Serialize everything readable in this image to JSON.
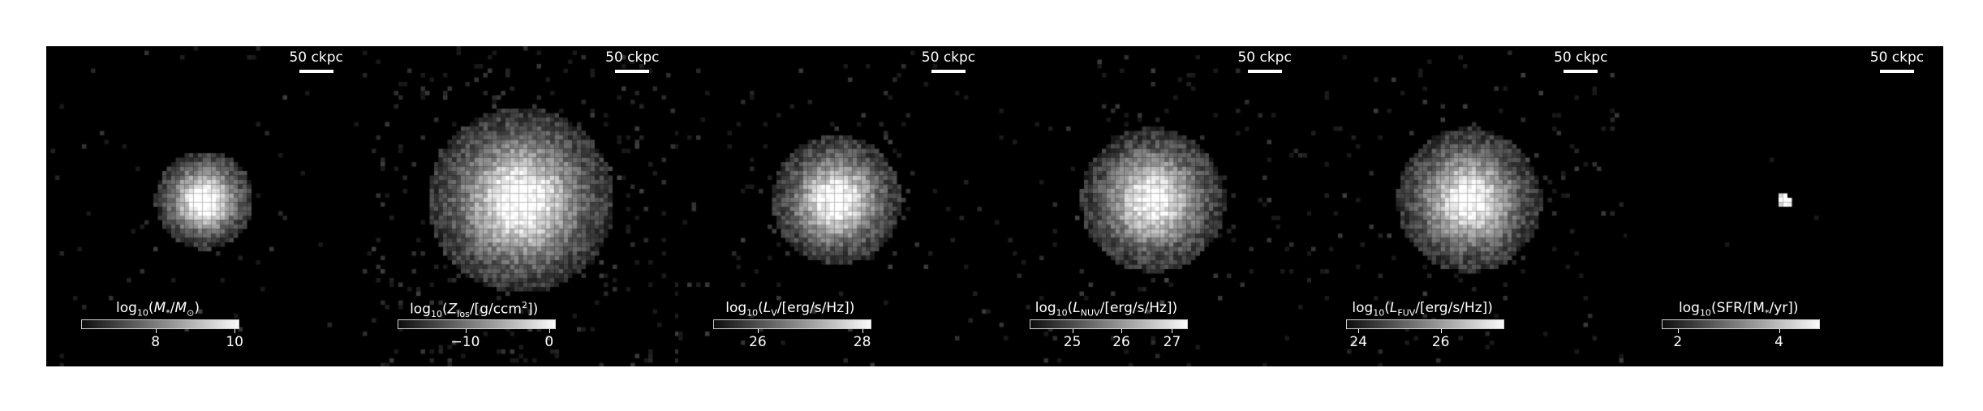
{
  "scale_label": "50 ckpc",
  "panels": [
    {
      "id": "mstar",
      "label_html": "log<sub>10</sub>(<i>M</i><sub>*</sub>/<i>M</i><sub>⊙</sub>)",
      "ticks": [
        {
          "t": "8",
          "p": 0.47
        },
        {
          "t": "10",
          "p": 0.97
        }
      ],
      "cmap": [
        0.05,
        0.98
      ],
      "spread": 0.75,
      "sparse": 0.25,
      "peak": 1.0
    },
    {
      "id": "zlos",
      "label_html": "log<sub>10</sub>(<i>Z</i><sub>los</sub>/[g/ccm<sup>2</sup>])",
      "ticks": [
        {
          "t": "−10",
          "p": 0.43
        },
        {
          "t": "0",
          "p": 0.96
        }
      ],
      "cmap": [
        0.05,
        0.98
      ],
      "spread": 1.6,
      "sparse": 1.0,
      "peak": 0.95
    },
    {
      "id": "lv",
      "label_html": "log<sub>10</sub>(<i>L</i><sub>V</sub>/[erg/s/Hz])",
      "ticks": [
        {
          "t": "26",
          "p": 0.28
        },
        {
          "t": "28",
          "p": 0.94
        }
      ],
      "cmap": [
        0.05,
        0.98
      ],
      "spread": 1.05,
      "sparse": 0.45,
      "peak": 0.95
    },
    {
      "id": "lnuv",
      "label_html": "log<sub>10</sub>(<i>L</i><sub>NUV</sub>/[erg/s/Hz])",
      "ticks": [
        {
          "t": "25",
          "p": 0.27
        },
        {
          "t": "26",
          "p": 0.58
        },
        {
          "t": "27",
          "p": 0.9
        }
      ],
      "cmap": [
        0.05,
        0.98
      ],
      "spread": 1.2,
      "sparse": 0.6,
      "peak": 0.9
    },
    {
      "id": "lfuv",
      "label_html": "log<sub>10</sub>(<i>L</i><sub>FUV</sub>/[erg/s/Hz])",
      "ticks": [
        {
          "t": "24",
          "p": 0.08
        },
        {
          "t": "26",
          "p": 0.6
        }
      ],
      "cmap": [
        0.05,
        0.98
      ],
      "spread": 1.2,
      "sparse": 0.6,
      "peak": 0.9
    },
    {
      "id": "sfr",
      "label_html": "log<sub>10</sub>(SFR/[M<sub>*</sub>/yr])",
      "ticks": [
        {
          "t": "2",
          "p": 0.1
        },
        {
          "t": "4",
          "p": 0.74
        }
      ],
      "cmap": [
        0.05,
        0.98
      ],
      "spread": 0.12,
      "sparse": 0.03,
      "peak": 1.0
    }
  ]
}
